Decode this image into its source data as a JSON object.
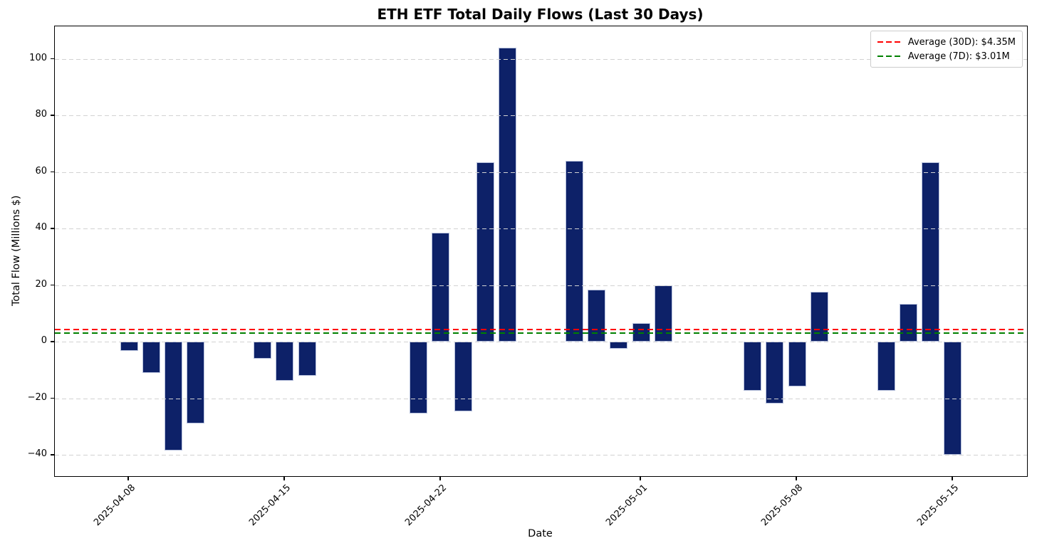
{
  "title": "ETH ETF Total Daily Flows (Last 30 Days)",
  "colors": {
    "bar_fill": "#0d2168",
    "bar_edge": "#b6c0dc",
    "grid": "#d2d2d2",
    "avg_30d_line": "#ff0000",
    "avg_7d_line": "#008000",
    "spine": "#000000",
    "background": "#ffffff",
    "legend_border": "#cccccc"
  },
  "chart_data": {
    "type": "bar",
    "title": "ETH ETF Total Daily Flows (Last 30 Days)",
    "xlabel": "Date",
    "ylabel": "Total Flow (Millions $)",
    "x": [
      "2025-04-08",
      "2025-04-09",
      "2025-04-10",
      "2025-04-11",
      "2025-04-14",
      "2025-04-15",
      "2025-04-16",
      "2025-04-21",
      "2025-04-22",
      "2025-04-23",
      "2025-04-24",
      "2025-04-25",
      "2025-04-28",
      "2025-04-29",
      "2025-04-30",
      "2025-05-01",
      "2025-05-02",
      "2025-05-06",
      "2025-05-07",
      "2025-05-08",
      "2025-05-09",
      "2025-05-12",
      "2025-05-13",
      "2025-05-14",
      "2025-05-15"
    ],
    "values": [
      -3.3,
      -11.0,
      -38.5,
      -29.0,
      -5.9,
      -13.8,
      -12.0,
      -25.3,
      38.6,
      -24.5,
      63.5,
      104.0,
      64.0,
      18.5,
      -2.4,
      6.6,
      20.0,
      -17.4,
      -21.8,
      -15.7,
      17.6,
      -17.2,
      13.4,
      63.4,
      -39.9
    ],
    "ylim": [
      -47.5,
      111.5
    ],
    "yticks": [
      100,
      80,
      60,
      40,
      20,
      0,
      -20,
      -40
    ],
    "ytick_labels": [
      "100",
      "80",
      "60",
      "40",
      "20",
      "0",
      "−20",
      "−40"
    ],
    "xtick_labels": [
      "2025-04-08",
      "2025-04-15",
      "2025-04-22",
      "2025-05-01",
      "2025-05-08",
      "2025-05-15"
    ],
    "grid": "horizontal dashed, drawn over bars",
    "legend_position": "upper right",
    "avg_30d": 4.35,
    "avg_7d": 3.01,
    "legend": {
      "entries": [
        {
          "label": "Average (30D): $4.35M",
          "color": "#ff0000",
          "style": "dashed",
          "value": 4.35
        },
        {
          "label": "Average (7D): $3.01M",
          "color": "#008000",
          "style": "dashed",
          "value": 3.01
        }
      ]
    }
  }
}
